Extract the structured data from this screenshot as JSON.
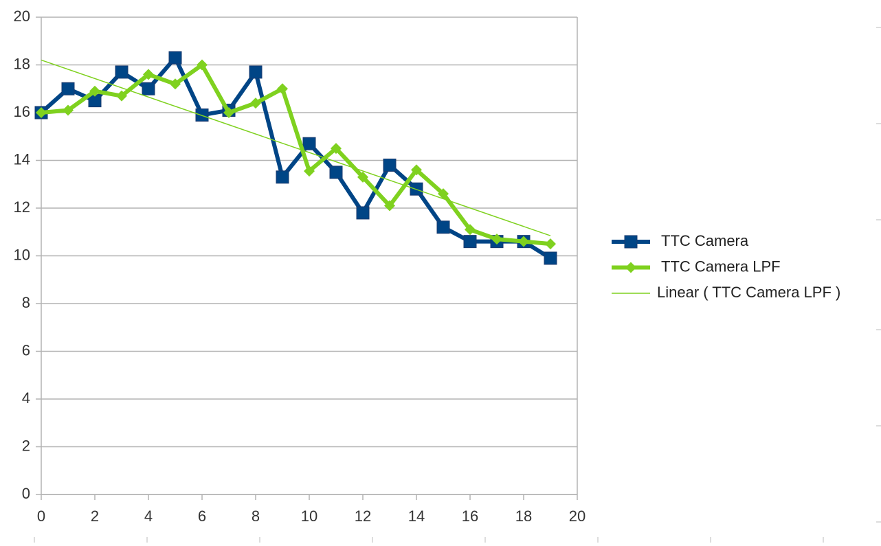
{
  "chart_data": {
    "type": "line",
    "x": [
      0,
      1,
      2,
      3,
      4,
      5,
      6,
      7,
      8,
      9,
      10,
      11,
      12,
      13,
      14,
      15,
      16,
      17,
      18,
      19
    ],
    "series": [
      {
        "name": "TTC Camera",
        "color": "#004586",
        "marker": "square",
        "values": [
          16.0,
          17.0,
          16.5,
          17.7,
          17.0,
          18.3,
          15.9,
          16.1,
          17.7,
          13.3,
          14.7,
          13.5,
          11.8,
          13.8,
          12.8,
          11.2,
          10.6,
          10.6,
          10.6,
          9.9
        ]
      },
      {
        "name": "TTC Camera LPF",
        "color": "#7fd11f",
        "marker": "diamond",
        "values": [
          16.0,
          16.1,
          16.9,
          16.7,
          17.6,
          17.2,
          18.0,
          16.0,
          16.4,
          17.0,
          13.55,
          14.5,
          13.3,
          12.1,
          13.6,
          12.6,
          11.1,
          10.7,
          10.6,
          10.5
        ]
      }
    ],
    "trendline": {
      "name": "Linear ( TTC Camera LPF )",
      "series": 1,
      "color": "#7fd11f"
    },
    "xlim": [
      0,
      20
    ],
    "xticks": [
      0,
      2,
      4,
      6,
      8,
      10,
      12,
      14,
      16,
      18,
      20
    ],
    "ylim": [
      0,
      20
    ],
    "yticks": [
      0,
      2,
      4,
      6,
      8,
      10,
      12,
      14,
      16,
      18,
      20
    ],
    "grid": true,
    "legend": "right"
  }
}
